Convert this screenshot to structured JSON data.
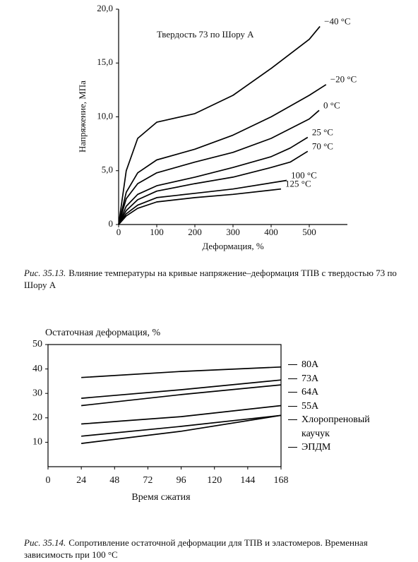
{
  "chart_data": [
    {
      "type": "line",
      "caption_label": "Рис. 35.13.",
      "caption": "Влияние температуры на кривые напряжение–деформация ТПВ с твердостью 73 по Шору А",
      "annotation": "Твердость 73 по Шору А",
      "x_label": "Деформация, %",
      "y_label": "Напряжение, МПа",
      "xlim": [
        0,
        600
      ],
      "ylim": [
        0,
        20
      ],
      "xticks": [
        0,
        100,
        200,
        300,
        400,
        500
      ],
      "yticks": [
        0,
        {
          "value": 5,
          "label": "5,0"
        },
        {
          "value": 10,
          "label": "10,0"
        },
        {
          "value": 15,
          "label": "15,0"
        },
        {
          "value": 20,
          "label": "20,0"
        }
      ],
      "frame": false,
      "legend": "line-end",
      "series": [
        {
          "name": "−40 °C",
          "color": "#000000",
          "x": [
            0,
            20,
            50,
            100,
            200,
            300,
            400,
            500,
            528
          ],
          "values": [
            0,
            5,
            8,
            9.5,
            10.3,
            12,
            14.5,
            17.2,
            18.4
          ]
        },
        {
          "name": "−20 °C",
          "color": "#000000",
          "x": [
            0,
            20,
            50,
            100,
            200,
            300,
            400,
            500,
            544
          ],
          "values": [
            0,
            3,
            4.8,
            6,
            7,
            8.3,
            10,
            12,
            13
          ]
        },
        {
          "name": "0 °C",
          "color": "#000000",
          "x": [
            0,
            20,
            50,
            100,
            200,
            300,
            400,
            500,
            526
          ],
          "values": [
            0,
            2.4,
            3.8,
            4.8,
            5.8,
            6.7,
            8,
            9.8,
            10.6
          ]
        },
        {
          "name": "25 °C",
          "color": "#000000",
          "x": [
            0,
            20,
            50,
            100,
            200,
            300,
            400,
            450,
            496
          ],
          "values": [
            0,
            1.7,
            2.8,
            3.6,
            4.4,
            5.3,
            6.3,
            7.1,
            8.1
          ]
        },
        {
          "name": "70 °C",
          "color": "#000000",
          "x": [
            0,
            20,
            50,
            100,
            200,
            300,
            400,
            450,
            496
          ],
          "values": [
            0,
            1.3,
            2.3,
            3.1,
            3.8,
            4.4,
            5.3,
            5.8,
            6.8
          ]
        },
        {
          "name": "100 °C",
          "color": "#000000",
          "x": [
            0,
            20,
            50,
            100,
            200,
            300,
            441
          ],
          "values": [
            0,
            1,
            1.8,
            2.5,
            2.9,
            3.3,
            4.1
          ]
        },
        {
          "name": "125 °C",
          "color": "#000000",
          "x": [
            0,
            20,
            50,
            100,
            200,
            300,
            426
          ],
          "values": [
            0,
            0.8,
            1.5,
            2.1,
            2.5,
            2.8,
            3.3
          ]
        }
      ]
    },
    {
      "type": "line",
      "caption_label": "Рис. 35.14.",
      "caption": "Сопротивление остаточной деформации для ТПВ и эластомеров. Временная зависимость при 100 °С",
      "x_label": "Время сжатия",
      "y_label": "Остаточная деформация, %",
      "xlim": [
        0,
        168
      ],
      "ylim": [
        0,
        50
      ],
      "xticks": [
        0,
        24,
        48,
        72,
        96,
        120,
        144,
        168
      ],
      "yticks": [
        10,
        20,
        30,
        40,
        50
      ],
      "frame": true,
      "legend": "right",
      "series": [
        {
          "name": "80А",
          "color": "#000000",
          "x": [
            24,
            96,
            168
          ],
          "values": [
            36.5,
            39,
            40.8
          ]
        },
        {
          "name": "73А",
          "color": "#000000",
          "x": [
            24,
            96,
            168
          ],
          "values": [
            28,
            31.5,
            35.5
          ]
        },
        {
          "name": "64А",
          "color": "#000000",
          "x": [
            24,
            96,
            168
          ],
          "values": [
            25,
            29.5,
            33.5
          ]
        },
        {
          "name": "55А",
          "color": "#000000",
          "x": [
            24,
            96,
            168
          ],
          "values": [
            17.5,
            20.5,
            25
          ]
        },
        {
          "name": "Хлоропреновый каучук",
          "color": "#000000",
          "x": [
            24,
            96,
            168
          ],
          "values": [
            12.5,
            16.5,
            21
          ]
        },
        {
          "name": "ЭПДМ",
          "color": "#000000",
          "x": [
            24,
            96,
            168
          ],
          "values": [
            9.5,
            14.5,
            21
          ]
        }
      ]
    }
  ]
}
